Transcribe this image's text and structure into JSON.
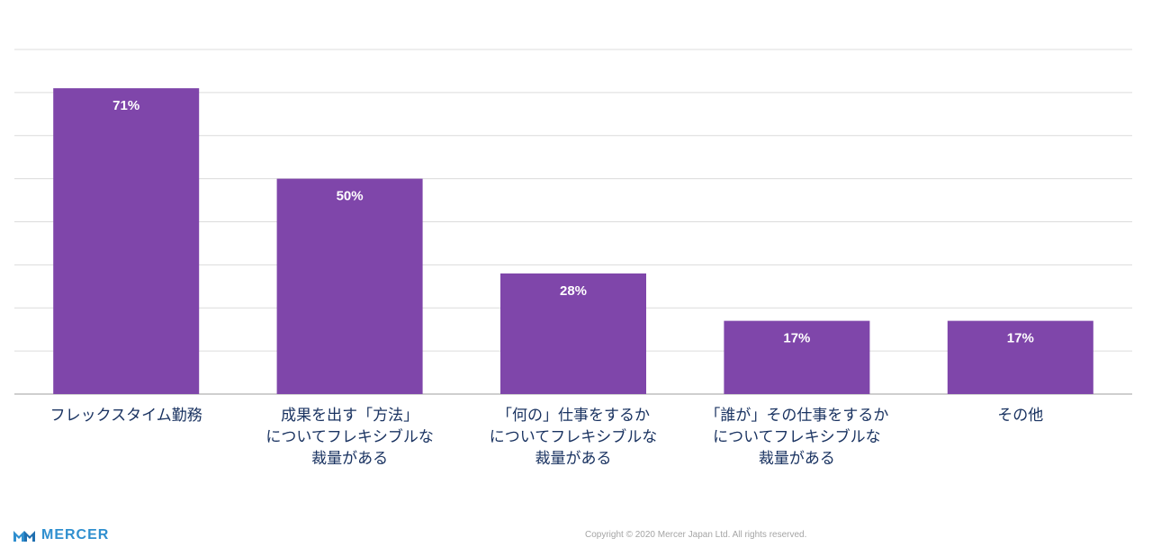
{
  "colors": {
    "bar": "#7f46aa",
    "value_label": "#ffffff",
    "category_label": "#1a3361",
    "gridline": "#dcdcdc",
    "axis": "#bfbfbf",
    "logo": "#2f8fcf"
  },
  "chart_data": {
    "type": "bar",
    "categories": [
      "フレックスタイム勤務",
      "成果を出す「方法」\nについてフレキシブルな\n裁量がある",
      "「何の」仕事をするか\nについてフレキシブルな\n裁量がある",
      "「誰が」その仕事をするか\nについてフレキシブルな\n裁量がある",
      "その他"
    ],
    "values": [
      71,
      50,
      28,
      17,
      17
    ],
    "value_labels": [
      "71%",
      "50%",
      "28%",
      "17%",
      "17%"
    ],
    "ylim": [
      0,
      80
    ],
    "ytick_step": 10,
    "grid": true,
    "title": "",
    "xlabel": "",
    "ylabel": ""
  },
  "footer": {
    "logo_text": "MERCER",
    "logo_icon": "mercer-logo-mark-icon",
    "copyright": "Copyright © 2020 Mercer Japan Ltd. All rights reserved."
  }
}
